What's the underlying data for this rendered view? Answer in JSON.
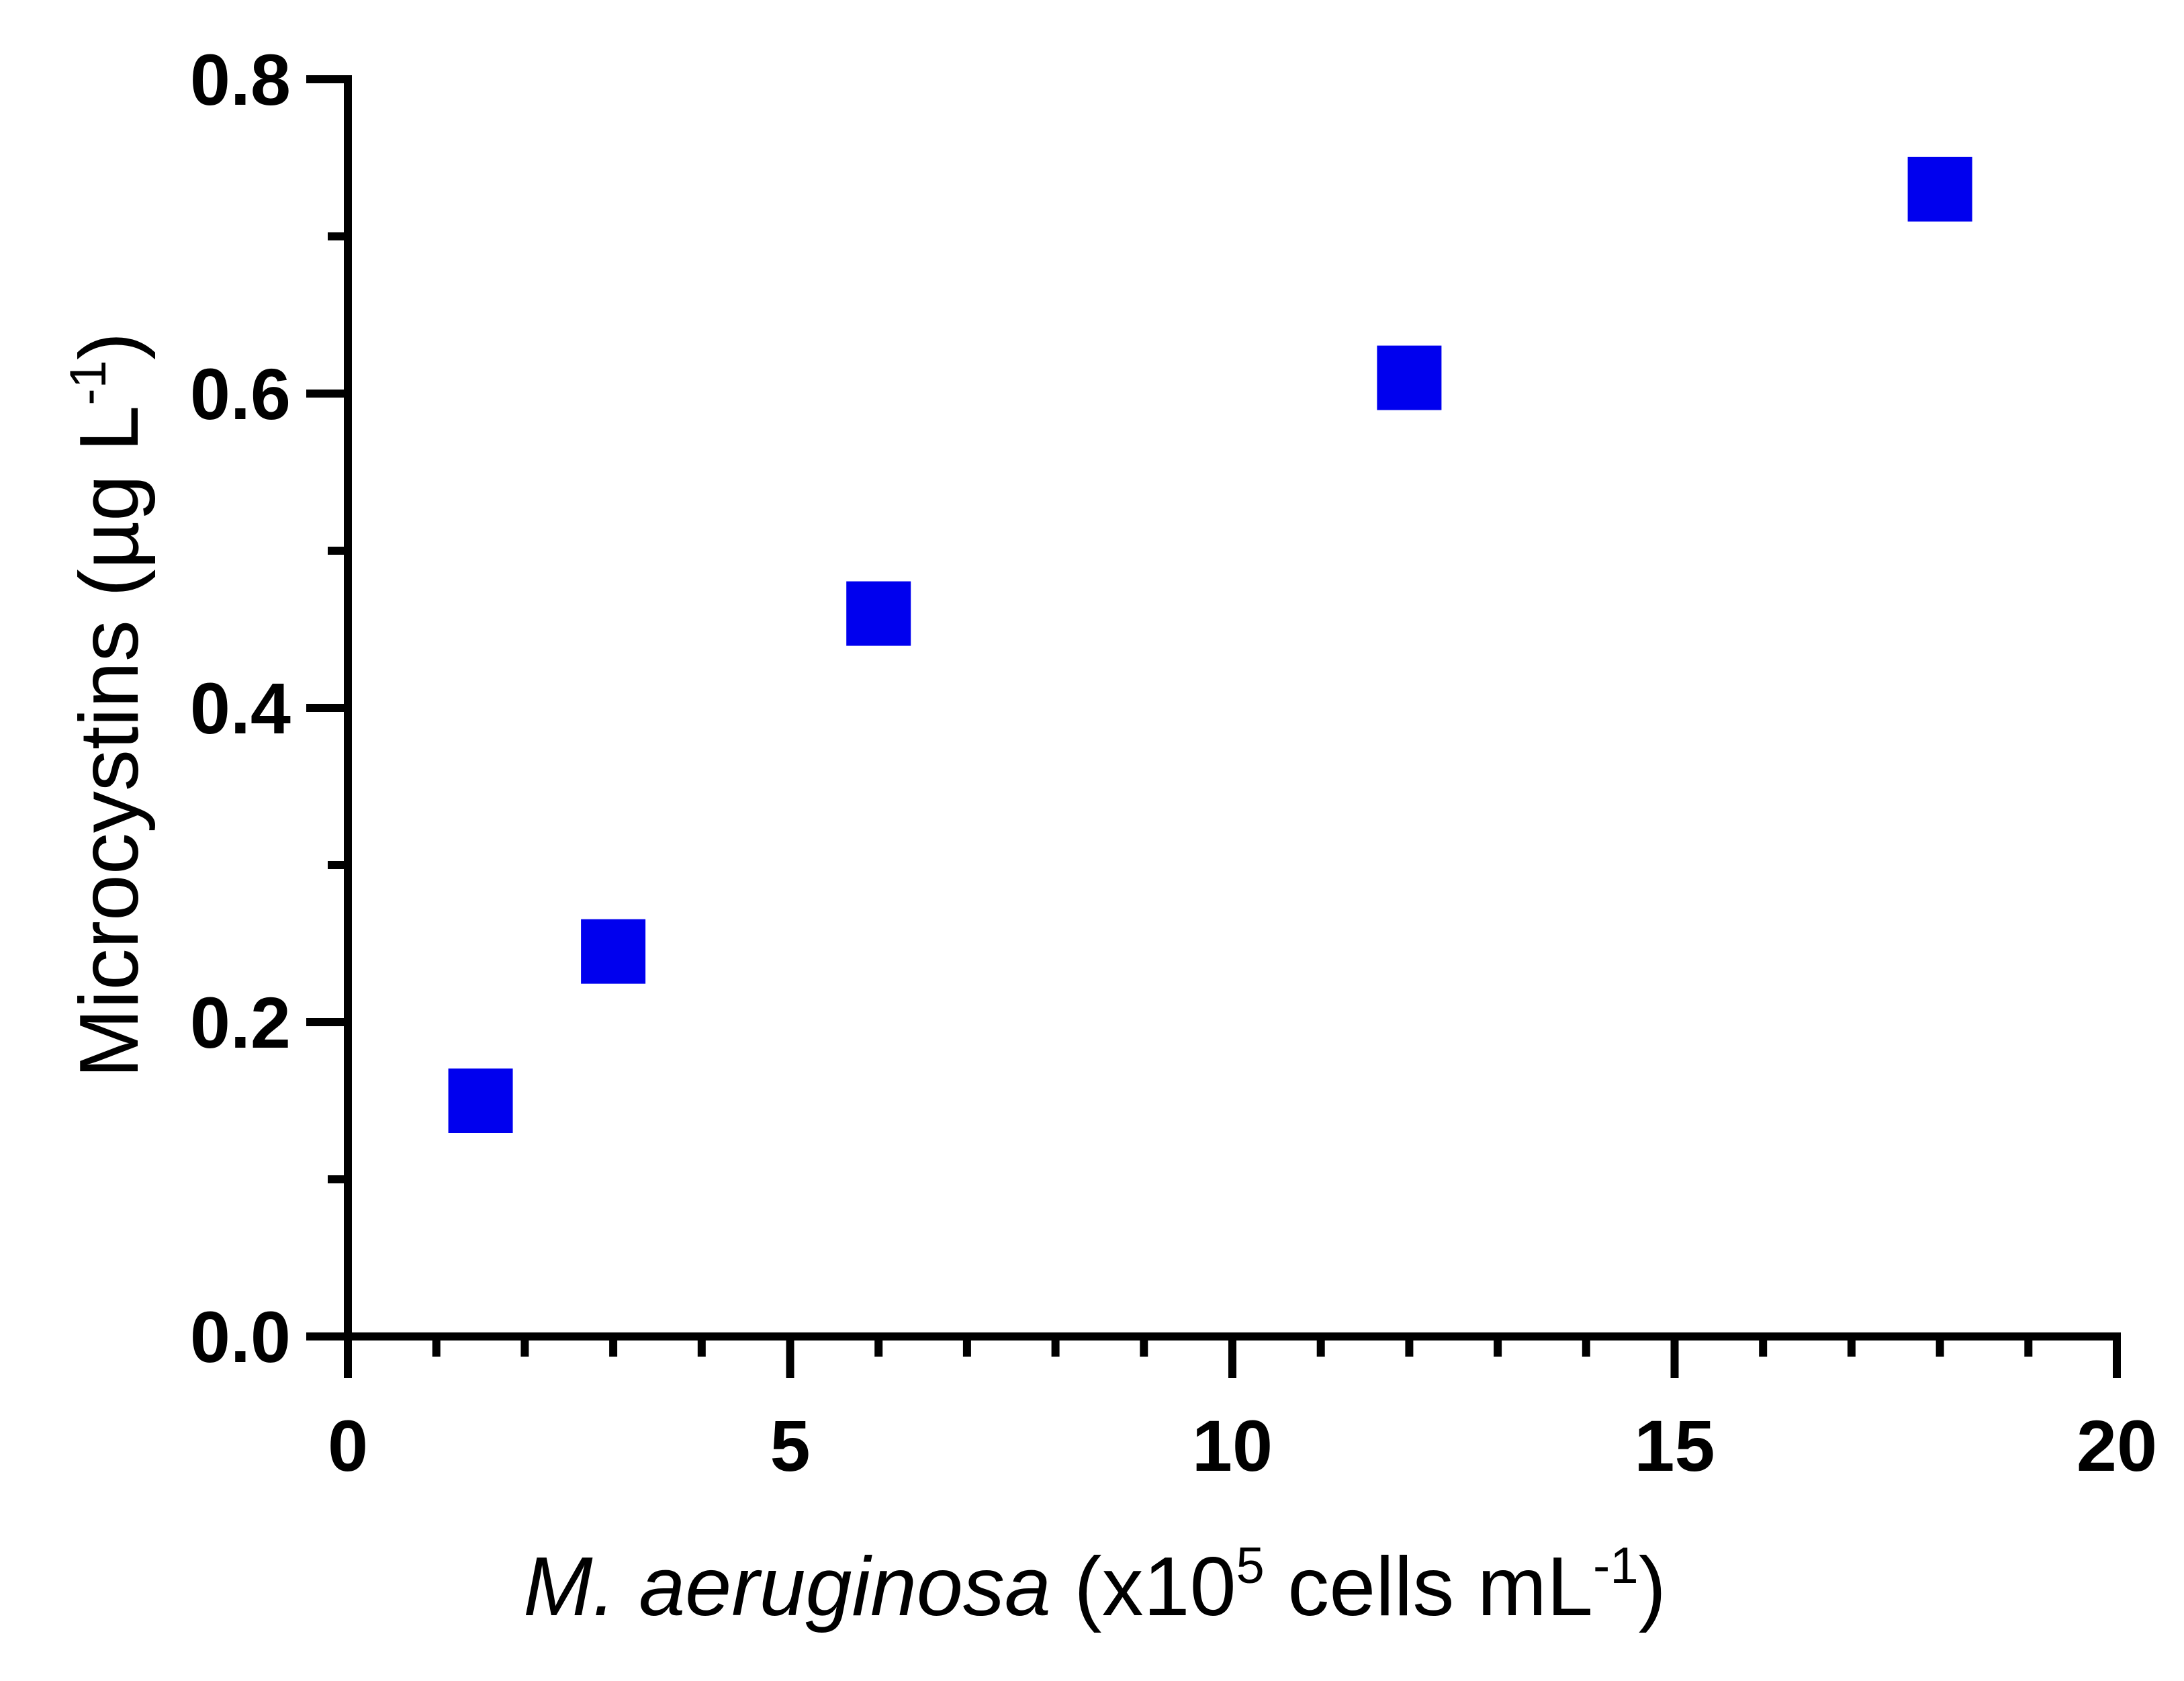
{
  "chart_data": {
    "type": "scatter",
    "title": "",
    "xlabel": {
      "italic": "M. aeruginosa",
      "pre": " (x10",
      "sup1": "5",
      "mid": " cells mL",
      "sup2": "-1",
      "post": ")"
    },
    "ylabel": {
      "pre": "Microcystins (µg L",
      "sup": "-1",
      "post": ")"
    },
    "xlim": [
      0,
      20
    ],
    "ylim": [
      0,
      0.8
    ],
    "x_major_ticks": [
      0,
      5,
      10,
      15,
      20
    ],
    "x_tick_labels": [
      "0",
      "5",
      "10",
      "15",
      "20"
    ],
    "x_minor_step": 1,
    "y_major_ticks": [
      0,
      0.2,
      0.4,
      0.6,
      0.8
    ],
    "y_tick_labels": [
      "0.0",
      "0.2",
      "0.4",
      "0.6",
      "0.8"
    ],
    "y_minor_step": 0.1,
    "grid": false,
    "series": [
      {
        "name": "Microcystins",
        "marker": "square",
        "color": "#0000ee",
        "x": [
          1.5,
          3,
          6,
          12,
          18
        ],
        "y": [
          0.15,
          0.245,
          0.46,
          0.61,
          0.73
        ]
      }
    ]
  }
}
